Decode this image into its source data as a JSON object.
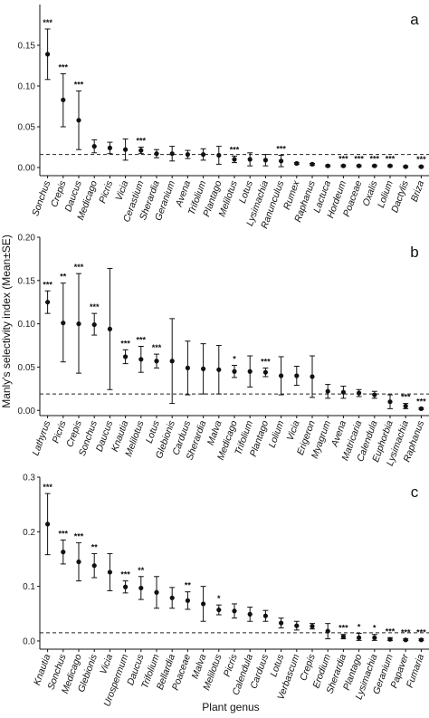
{
  "figure": {
    "ylabel": "Manly's selectivity index (Mean±SE)",
    "xlabel": "Plant genus"
  },
  "chart_data": [
    {
      "type": "scatter",
      "panel": "a",
      "ylim": [
        -0.01,
        0.2
      ],
      "yticks": [
        "0.00",
        "0.05",
        "0.10",
        "0.15"
      ],
      "reference_line": 0.016,
      "categories": [
        "Sonchus",
        "Crepis",
        "Daucus",
        "Medicago",
        "Picris",
        "Vicia",
        "Cerastium",
        "Sherardia",
        "Geranium",
        "Avena",
        "Trifolium",
        "Plantago",
        "Melilotus",
        "Lotus",
        "Lysimachia",
        "Ranunculus",
        "Rumex",
        "Raphanus",
        "Lactuca",
        "Hordeum",
        "Poaceae",
        "Oxalis",
        "Lolium",
        "Dactylis",
        "Briza"
      ],
      "mean": [
        0.139,
        0.083,
        0.058,
        0.026,
        0.024,
        0.022,
        0.021,
        0.017,
        0.017,
        0.016,
        0.016,
        0.015,
        0.01,
        0.01,
        0.009,
        0.008,
        0.005,
        0.004,
        0.002,
        0.002,
        0.002,
        0.002,
        0.002,
        0.001,
        0.001
      ],
      "upper": [
        0.17,
        0.115,
        0.094,
        0.034,
        0.031,
        0.035,
        0.025,
        0.022,
        0.026,
        0.021,
        0.023,
        0.026,
        0.014,
        0.018,
        0.016,
        0.015,
        0.006,
        0.005,
        0.003,
        0.003,
        0.003,
        0.003,
        0.003,
        0.002,
        0.002
      ],
      "lower": [
        0.108,
        0.05,
        0.022,
        0.018,
        0.017,
        0.009,
        0.017,
        0.012,
        0.008,
        0.011,
        0.009,
        0.004,
        0.006,
        0.002,
        0.002,
        0.001,
        0.004,
        0.003,
        0.001,
        0.001,
        0.001,
        0.001,
        0.001,
        0.0,
        0.0
      ],
      "significance": [
        "***",
        "***",
        "***",
        "",
        "",
        "",
        "***",
        "",
        "",
        "",
        "",
        "",
        "***",
        "",
        "",
        "***",
        "",
        "",
        "",
        "***",
        "***",
        "***",
        "***",
        "",
        "***"
      ]
    },
    {
      "type": "scatter",
      "panel": "b",
      "ylim": [
        -0.006,
        0.2
      ],
      "yticks": [
        "0.00",
        "0.05",
        "0.10",
        "0.15",
        "0.20"
      ],
      "reference_line": 0.019,
      "categories": [
        "Lathyrus",
        "Picris",
        "Crepis",
        "Sonchus",
        "Daucus",
        "Knautia",
        "Melilotus",
        "Lotus",
        "Glebionis",
        "Carduus",
        "Sherardia",
        "Malva",
        "Medicago",
        "Trifolium",
        "Plantago",
        "Lolium",
        "Vicia",
        "Erigeron",
        "Myagrum",
        "Avena",
        "Matricaria",
        "Calendula",
        "Euphorbia",
        "Lysimachia",
        "Raphanus"
      ],
      "mean": [
        0.125,
        0.101,
        0.1,
        0.099,
        0.094,
        0.062,
        0.059,
        0.057,
        0.057,
        0.049,
        0.048,
        0.047,
        0.045,
        0.045,
        0.044,
        0.04,
        0.04,
        0.039,
        0.022,
        0.021,
        0.02,
        0.018,
        0.01,
        0.005,
        0.002
      ],
      "upper": [
        0.138,
        0.147,
        0.158,
        0.112,
        0.164,
        0.07,
        0.074,
        0.065,
        0.106,
        0.08,
        0.077,
        0.075,
        0.052,
        0.063,
        0.049,
        0.062,
        0.051,
        0.063,
        0.03,
        0.028,
        0.024,
        0.022,
        0.018,
        0.008,
        0.003
      ],
      "lower": [
        0.112,
        0.056,
        0.043,
        0.087,
        0.024,
        0.054,
        0.044,
        0.049,
        0.008,
        0.018,
        0.019,
        0.019,
        0.038,
        0.027,
        0.039,
        0.018,
        0.029,
        0.015,
        0.014,
        0.014,
        0.016,
        0.014,
        0.002,
        0.002,
        0.001
      ],
      "significance": [
        "***",
        "**",
        "***",
        "***",
        "",
        "***",
        "***",
        "***",
        "",
        "",
        "",
        "",
        "*",
        "",
        "***",
        "",
        "",
        "",
        "",
        "",
        "",
        "",
        "",
        "***",
        "***"
      ]
    },
    {
      "type": "scatter",
      "panel": "c",
      "ylim": [
        -0.015,
        0.3
      ],
      "yticks": [
        "0.0",
        "0.1",
        "0.2",
        "0.3"
      ],
      "reference_line": 0.015,
      "categories": [
        "Knautia",
        "Sonchus",
        "Medicago",
        "Glebionis",
        "Vicia",
        "Urospermum",
        "Daucus",
        "Trifolium",
        "Bellardia",
        "Poaceae",
        "Malva",
        "Melilotus",
        "Picris",
        "Calendula",
        "Carduus",
        "Lotus",
        "Verbascum",
        "Crepis",
        "Erodium",
        "Sherardia",
        "Plantago",
        "Lysimachia",
        "Geranium",
        "Papaver",
        "Fumaria"
      ],
      "mean": [
        0.214,
        0.163,
        0.145,
        0.138,
        0.126,
        0.099,
        0.097,
        0.089,
        0.079,
        0.074,
        0.068,
        0.057,
        0.055,
        0.049,
        0.046,
        0.033,
        0.028,
        0.027,
        0.018,
        0.008,
        0.006,
        0.006,
        0.003,
        0.002,
        0.002
      ],
      "upper": [
        0.27,
        0.185,
        0.18,
        0.16,
        0.16,
        0.11,
        0.118,
        0.118,
        0.098,
        0.09,
        0.1,
        0.066,
        0.068,
        0.062,
        0.056,
        0.042,
        0.036,
        0.032,
        0.032,
        0.012,
        0.014,
        0.012,
        0.006,
        0.004,
        0.004
      ],
      "lower": [
        0.158,
        0.141,
        0.11,
        0.116,
        0.092,
        0.088,
        0.076,
        0.06,
        0.06,
        0.058,
        0.036,
        0.048,
        0.042,
        0.036,
        0.036,
        0.024,
        0.02,
        0.022,
        0.004,
        0.004,
        0.001,
        0.001,
        0.001,
        0.001,
        0.001
      ],
      "significance": [
        "***",
        "***",
        "***",
        "**",
        "",
        "***",
        "**",
        "",
        "",
        "**",
        "",
        "*",
        "",
        "",
        "",
        "",
        "",
        "",
        "",
        "***",
        "*",
        "*",
        "***",
        "***",
        "***"
      ]
    }
  ]
}
